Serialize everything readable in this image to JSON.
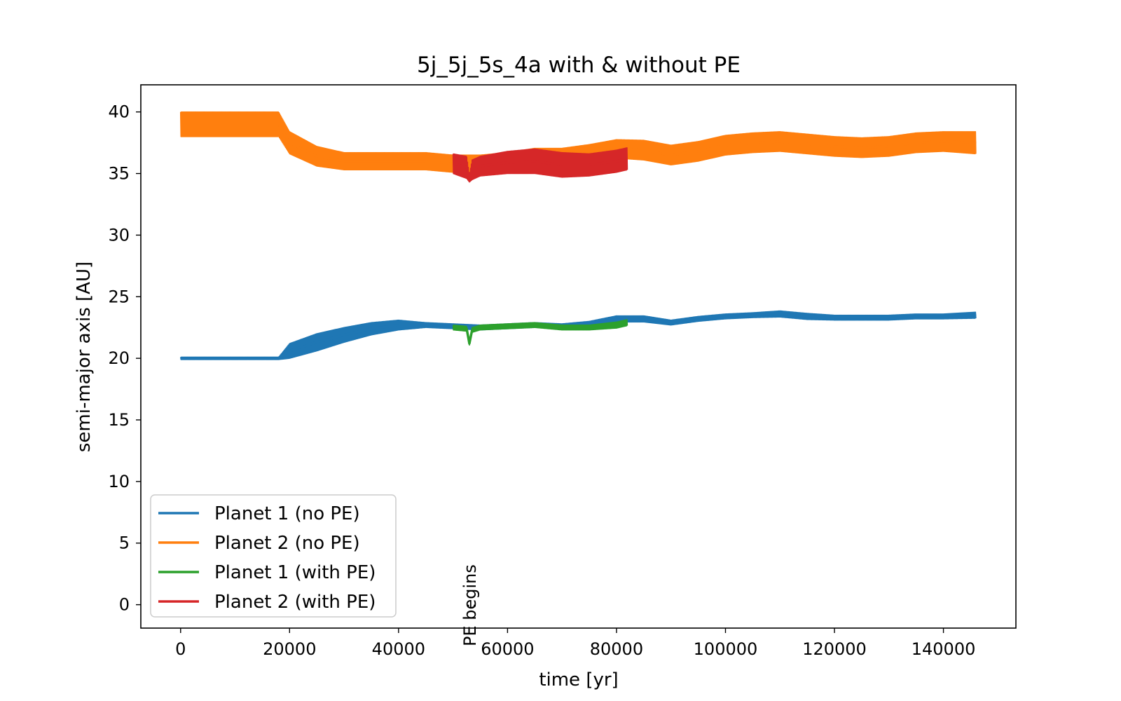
{
  "chart_data": {
    "type": "line",
    "title": "5j_5j_5s_4a with & without PE",
    "xlabel": "time [yr]",
    "ylabel": "semi-major axis [AU]",
    "xlim": [
      -7300,
      153300
    ],
    "ylim": [
      -1.9,
      42.2
    ],
    "xticks": [
      0,
      20000,
      40000,
      60000,
      80000,
      100000,
      120000,
      140000
    ],
    "xtick_labels": [
      "0",
      "20000",
      "40000",
      "60000",
      "80000",
      "100000",
      "120000",
      "140000"
    ],
    "yticks": [
      0,
      5,
      10,
      15,
      20,
      25,
      30,
      35,
      40
    ],
    "ytick_labels": [
      "0",
      "5",
      "10",
      "15",
      "20",
      "25",
      "30",
      "35",
      "40"
    ],
    "grid": false,
    "legend_position": "lower-left",
    "annotation": {
      "text": "PE begins",
      "x": 53000,
      "orientation": "vertical",
      "marker": ":"
    },
    "series": [
      {
        "name": "Planet 1 (no PE)",
        "color": "#1f77b4",
        "x": [
          0,
          18000,
          20000,
          25000,
          30000,
          35000,
          40000,
          45000,
          50000,
          55000,
          60000,
          65000,
          70000,
          75000,
          80000,
          85000,
          90000,
          95000,
          100000,
          105000,
          110000,
          115000,
          120000,
          125000,
          130000,
          135000,
          140000,
          146000
        ],
        "y": [
          20.0,
          20.0,
          20.6,
          21.3,
          21.9,
          22.4,
          22.7,
          22.7,
          22.6,
          22.5,
          22.6,
          22.7,
          22.6,
          22.8,
          23.2,
          23.2,
          22.9,
          23.2,
          23.4,
          23.5,
          23.6,
          23.4,
          23.3,
          23.3,
          23.3,
          23.4,
          23.4,
          23.5
        ],
        "band": [
          0.1,
          0.1,
          0.6,
          0.7,
          0.6,
          0.5,
          0.4,
          0.2,
          0.2,
          0.2,
          0.2,
          0.2,
          0.2,
          0.2,
          0.25,
          0.25,
          0.2,
          0.2,
          0.2,
          0.2,
          0.25,
          0.25,
          0.2,
          0.2,
          0.2,
          0.2,
          0.2,
          0.25
        ]
      },
      {
        "name": "Planet 2 (no PE)",
        "color": "#ff7f0e",
        "x": [
          0,
          18000,
          20000,
          25000,
          30000,
          35000,
          40000,
          45000,
          50000,
          55000,
          60000,
          65000,
          70000,
          75000,
          80000,
          85000,
          90000,
          95000,
          100000,
          105000,
          110000,
          115000,
          120000,
          125000,
          130000,
          135000,
          140000,
          146000
        ],
        "y": [
          39.0,
          39.0,
          37.5,
          36.4,
          36.0,
          36.0,
          36.0,
          36.0,
          35.8,
          35.8,
          36.0,
          36.3,
          36.3,
          36.6,
          37.0,
          36.9,
          36.5,
          36.8,
          37.3,
          37.5,
          37.6,
          37.4,
          37.2,
          37.1,
          37.2,
          37.5,
          37.6,
          37.5
        ],
        "band": [
          1.0,
          1.0,
          0.9,
          0.8,
          0.7,
          0.7,
          0.7,
          0.7,
          0.7,
          0.7,
          0.7,
          0.75,
          0.75,
          0.75,
          0.75,
          0.8,
          0.8,
          0.8,
          0.8,
          0.8,
          0.8,
          0.8,
          0.8,
          0.8,
          0.8,
          0.8,
          0.8,
          0.9
        ]
      },
      {
        "name": "Planet 1 (with PE)",
        "color": "#2ca02c",
        "x": [
          50000,
          52500,
          53000,
          53500,
          55000,
          60000,
          65000,
          70000,
          75000,
          80000,
          82000
        ],
        "y": [
          22.5,
          22.4,
          21.2,
          22.3,
          22.5,
          22.6,
          22.7,
          22.5,
          22.5,
          22.7,
          22.9
        ],
        "band": [
          0.2,
          0.2,
          0.15,
          0.2,
          0.2,
          0.2,
          0.2,
          0.2,
          0.2,
          0.25,
          0.25
        ]
      },
      {
        "name": "Planet 2 (with PE)",
        "color": "#d62728",
        "x": [
          50000,
          52500,
          53000,
          53500,
          55000,
          60000,
          65000,
          70000,
          75000,
          80000,
          82000
        ],
        "y": [
          35.8,
          35.5,
          34.6,
          35.3,
          35.6,
          35.9,
          36.0,
          35.7,
          35.7,
          36.0,
          36.2
        ],
        "band": [
          0.8,
          0.9,
          0.3,
          0.8,
          0.8,
          0.9,
          1.0,
          1.0,
          0.9,
          0.9,
          0.9
        ]
      }
    ]
  }
}
